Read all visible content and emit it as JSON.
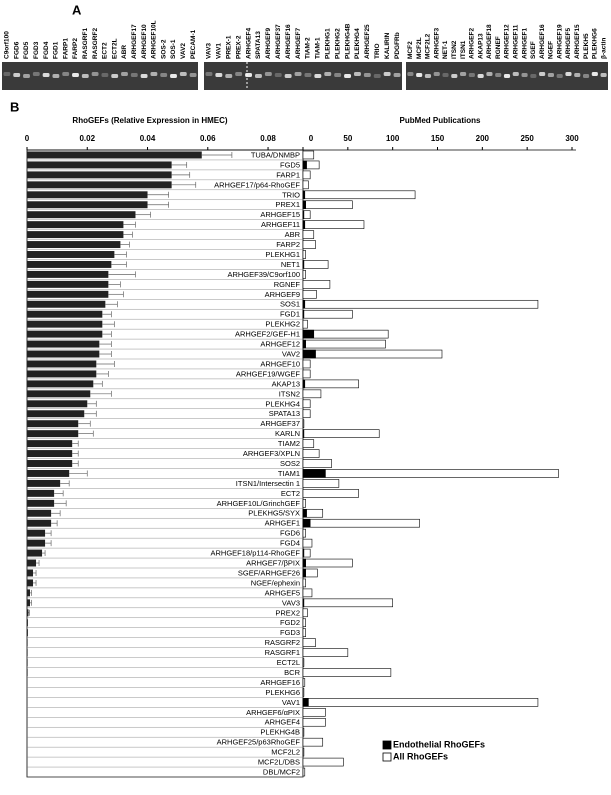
{
  "panel_a": {
    "label": "A",
    "groups": [
      [
        "C9orf100",
        "FGD6",
        "FGD5",
        "FGD3",
        "FGD4",
        "FGD1",
        "FARP1",
        "FARP2",
        "RASGRF1",
        "RASGRF2",
        "ECT2",
        "ECT2L",
        "ABR",
        "ARHGEF17",
        "ARHGEF10",
        "ARHGEF10L",
        "SOS-2",
        "SOS-1",
        "VAV2",
        "PECAM-1"
      ],
      [
        "VAV3",
        "VAV1",
        "PREX-1",
        "PREX-2",
        "ARHGEF4",
        "SPATA13",
        "ARHGEF9",
        "ARHGEF37",
        "ARHGEF16",
        "ARHGEF7",
        "TIAM-2",
        "TIAM-1",
        "PLEKHG1",
        "PLEKHG2",
        "PLEKHG4B",
        "PLEKHG4",
        "ARHGEF25",
        "TRIO",
        "KALIRIN",
        "PDGFRb"
      ],
      [
        "MCF2",
        "MCF2L",
        "MCF2L2",
        "ARHGEF3",
        "NET-1",
        "ITSN2",
        "ITSN1",
        "ARHGEF2",
        "AKAP13",
        "ARHGEF18",
        "RGNEF",
        "ARHGEF12",
        "ARHGEF11",
        "ARHGEF1",
        "SGEF",
        "ARHGEF16",
        "NGEF",
        "ARHGEF19",
        "ARHGEF5",
        "ARHGEF15",
        "PLEKH5",
        "PLEKHG6",
        "β-actin"
      ]
    ]
  },
  "panel_b_label": "B",
  "chart_data": [
    {
      "type": "bar",
      "orientation": "horizontal",
      "title": "RhoGEFs (Relative Expression in HMEC)",
      "categories": [
        "TUBA/DNMBP",
        "FGD5",
        "FARP1",
        "ARHGEF17/p64-RhoGEF",
        "TRIO",
        "PREX1",
        "ARHGEF15",
        "ARHGEF11",
        "ABR",
        "FARP2",
        "PLEKHG1",
        "NET1",
        "ARHGEF39/C9orf100",
        "RGNEF",
        "ARHGEF9",
        "SOS1",
        "FGD1",
        "PLEKHG2",
        "ARHGEF2/GEF-H1",
        "ARHGEF12",
        "VAV2",
        "ARHGEF10",
        "ARHGEF19/WGEF",
        "AKAP13",
        "ITSN2",
        "PLEKHG4",
        "SPATA13",
        "ARHGEF37",
        "KARLN",
        "TIAM2",
        "ARHGEF3/XPLN",
        "SOS2",
        "TIAM1",
        "ITSN1/Intersectin 1",
        "ECT2",
        "ARHGEF10L/GrinchGEF",
        "PLEKHG5/SYX",
        "ARHGEF1",
        "FGD6",
        "FGD4",
        "ARHGEF18/p114-RhoGEF",
        "ARHGEF7/βPIX",
        "SGEF/ARHGEF26",
        "NGEF/ephexin",
        "ARHGEF5",
        "VAV3",
        "PREX2",
        "FGD2",
        "FGD3",
        "RASGRF2",
        "RASGRF1",
        "ECT2L",
        "BCR",
        "ARHGEF16",
        "PLEKHG6",
        "VAV1",
        "ARHGEF6/αPIX",
        "ARHGEF4",
        "PLEKHG4B",
        "ARHGEF25/p63RhoGEF",
        "MCF2L2",
        "MCF2L/DBS",
        "DBL/MCF2"
      ],
      "values": [
        0.058,
        0.048,
        0.048,
        0.048,
        0.04,
        0.04,
        0.036,
        0.032,
        0.032,
        0.031,
        0.029,
        0.028,
        0.027,
        0.027,
        0.027,
        0.026,
        0.025,
        0.025,
        0.025,
        0.024,
        0.024,
        0.023,
        0.023,
        0.022,
        0.021,
        0.02,
        0.019,
        0.017,
        0.017,
        0.015,
        0.015,
        0.015,
        0.014,
        0.011,
        0.009,
        0.009,
        0.008,
        0.008,
        0.006,
        0.006,
        0.005,
        0.003,
        0.002,
        0.002,
        0.001,
        0.001,
        0.0005,
        0.0003,
        0.0003,
        0.0002,
        0.0002,
        0.0002,
        0.0002,
        0.0001,
        0.0001,
        0.0001,
        0.0001,
        0.0001,
        0,
        0,
        0,
        0,
        0
      ],
      "errors": [
        0.01,
        0.005,
        0.006,
        0.008,
        0.007,
        0.007,
        0.005,
        0.004,
        0.003,
        0.003,
        0.004,
        0.005,
        0.009,
        0.004,
        0.005,
        0.004,
        0.003,
        0.004,
        0.003,
        0.004,
        0.004,
        0.006,
        0.004,
        0.003,
        0.007,
        0.003,
        0.004,
        0.004,
        0.005,
        0.002,
        0.002,
        0.002,
        0.006,
        0.003,
        0.003,
        0.004,
        0.003,
        0.002,
        0.002,
        0.002,
        0.001,
        0.001,
        0.001,
        0.001,
        0.0005,
        0.0005,
        0.0003,
        0,
        0,
        0,
        0,
        0,
        0,
        0,
        0,
        0,
        0,
        0,
        0,
        0,
        0,
        0,
        0
      ],
      "color": "#222222",
      "xlim": [
        0,
        0.0916
      ],
      "xticks": [
        0,
        0.02,
        0.04,
        0.06,
        0.08
      ]
    },
    {
      "type": "bar",
      "orientation": "horizontal",
      "title": "PubMed Publications",
      "series": [
        {
          "name": "Endothelial RhoGEFs",
          "color": "#000000",
          "values": [
            0,
            4,
            0,
            0,
            2,
            3,
            1,
            2,
            0,
            0,
            0,
            1,
            0,
            0,
            0,
            2,
            1,
            0,
            12,
            3,
            14,
            0,
            0,
            2,
            0,
            0,
            0,
            0,
            1,
            0,
            0,
            0,
            25,
            0,
            0,
            0,
            4,
            8,
            0,
            0,
            1,
            3,
            3,
            0,
            0,
            1,
            0,
            0,
            0,
            0,
            0,
            0,
            0,
            0,
            0,
            6,
            0,
            0,
            0,
            0,
            0,
            0,
            0
          ]
        },
        {
          "name": "All RhoGEFs",
          "color": "#ffffff",
          "values": [
            12,
            18,
            8,
            6,
            125,
            55,
            8,
            68,
            12,
            14,
            3,
            28,
            3,
            30,
            15,
            262,
            55,
            5,
            95,
            92,
            155,
            8,
            8,
            62,
            20,
            8,
            8,
            1,
            85,
            12,
            18,
            32,
            285,
            40,
            62,
            3,
            22,
            130,
            3,
            10,
            8,
            55,
            16,
            3,
            10,
            100,
            5,
            3,
            3,
            14,
            50,
            1,
            98,
            2,
            1,
            262,
            25,
            25,
            1,
            22,
            1,
            45,
            2
          ]
        }
      ],
      "xlim": [
        0,
        300
      ],
      "xticks": [
        0,
        50,
        100,
        150,
        200,
        250,
        300
      ],
      "legend": "lower right"
    }
  ]
}
